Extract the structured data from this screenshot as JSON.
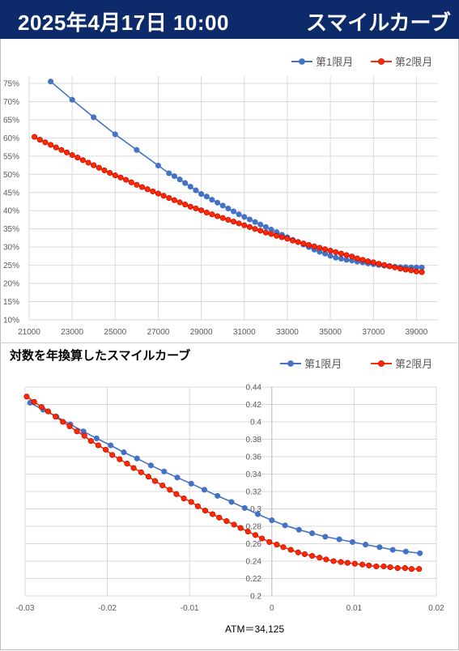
{
  "header": {
    "datetime": "2025年4月17日 10:00",
    "title": "スマイルカーブ"
  },
  "colors": {
    "series1": "#4472c4",
    "series2": "#ff2a00",
    "header_bg": "#0d2a6b"
  },
  "chart_data": [
    {
      "type": "line",
      "xlim": [
        21000,
        40000
      ],
      "ylim": [
        10,
        77
      ],
      "x_ticks": [
        21000,
        23000,
        25000,
        27000,
        29000,
        31000,
        33000,
        35000,
        37000,
        39000
      ],
      "y_ticks": [
        10,
        15,
        20,
        25,
        30,
        35,
        40,
        45,
        50,
        55,
        60,
        65,
        70,
        75
      ],
      "y_tick_suffix": "%",
      "legend_position": "top-right",
      "grid": true,
      "series": [
        {
          "name": "第1限月",
          "x": [
            22000,
            23000,
            24000,
            25000,
            26000,
            27000,
            27500,
            27750,
            28000,
            28250,
            28500,
            28750,
            29000,
            29250,
            29500,
            29750,
            30000,
            30250,
            30500,
            30750,
            31000,
            31250,
            31500,
            31750,
            32000,
            32250,
            32500,
            32750,
            33000,
            33250,
            33500,
            33750,
            34000,
            34250,
            34500,
            34750,
            35000,
            35250,
            35500,
            35750,
            36000,
            36250,
            36500,
            36750,
            37000,
            37250,
            37500,
            37750,
            38000,
            38250,
            38500,
            38750,
            39000,
            39250
          ],
          "y": [
            75.5,
            70.5,
            65.7,
            61.0,
            56.7,
            52.4,
            50.3,
            49.5,
            48.6,
            47.6,
            46.6,
            45.6,
            44.6,
            43.9,
            43.0,
            42.2,
            41.4,
            40.6,
            39.8,
            39.0,
            38.3,
            37.6,
            36.9,
            36.2,
            35.5,
            34.8,
            34.1,
            33.4,
            32.7,
            32.0,
            31.4,
            30.7,
            30.0,
            29.3,
            28.7,
            28.2,
            27.6,
            27.1,
            26.8,
            26.5,
            26.3,
            26.0,
            25.8,
            25.5,
            25.3,
            25.1,
            24.9,
            24.8,
            24.6,
            24.5,
            24.5,
            24.4,
            24.4,
            24.4
          ]
        },
        {
          "name": "第2限月",
          "x": [
            21250,
            21500,
            21750,
            22000,
            22250,
            22500,
            22750,
            23000,
            23250,
            23500,
            23750,
            24000,
            24250,
            24500,
            24750,
            25000,
            25250,
            25500,
            25750,
            26000,
            26250,
            26500,
            26750,
            27000,
            27250,
            27500,
            27750,
            28000,
            28250,
            28500,
            28750,
            29000,
            29250,
            29500,
            29750,
            30000,
            30250,
            30500,
            30750,
            31000,
            31250,
            31500,
            31750,
            32000,
            32250,
            32500,
            32750,
            33000,
            33250,
            33500,
            33750,
            34000,
            34250,
            34500,
            34750,
            35000,
            35250,
            35500,
            35750,
            36000,
            36250,
            36500,
            36750,
            37000,
            37250,
            37500,
            37750,
            38000,
            38250,
            38500,
            38750,
            39000,
            39250
          ],
          "y": [
            60.3,
            59.5,
            58.8,
            58.1,
            57.4,
            56.7,
            56.0,
            55.3,
            54.6,
            53.9,
            53.2,
            52.5,
            51.8,
            51.1,
            50.4,
            49.7,
            49.1,
            48.5,
            47.8,
            47.1,
            46.5,
            45.9,
            45.3,
            44.7,
            44.1,
            43.5,
            42.9,
            42.3,
            41.7,
            41.1,
            40.6,
            40.1,
            39.5,
            39.0,
            38.5,
            38.0,
            37.5,
            37.0,
            36.5,
            36.0,
            35.5,
            35.0,
            34.5,
            34.0,
            33.6,
            33.1,
            32.7,
            32.3,
            31.8,
            31.4,
            31.0,
            30.6,
            30.2,
            29.8,
            29.4,
            29.0,
            28.6,
            28.2,
            27.8,
            27.4,
            26.9,
            26.5,
            26.1,
            25.8,
            25.4,
            25.1,
            24.7,
            24.4,
            24.1,
            23.8,
            23.6,
            23.3,
            23.1
          ]
        }
      ]
    },
    {
      "type": "line",
      "title": "対数を年換算したスマイルカーブ",
      "xlim": [
        -0.03,
        0.02
      ],
      "ylim": [
        0.2,
        0.44
      ],
      "x_ticks": [
        -0.03,
        -0.02,
        -0.01,
        0,
        0.01,
        0.02
      ],
      "y_ticks": [
        0.2,
        0.22,
        0.24,
        0.26,
        0.28,
        0.3,
        0.32,
        0.34,
        0.36,
        0.38,
        0.4,
        0.42,
        0.44
      ],
      "legend_position": "top-right",
      "grid": true,
      "series": [
        {
          "name": "第1限月",
          "x": [
            -0.0294,
            -0.0278,
            -0.0262,
            -0.0245,
            -0.0229,
            -0.0213,
            -0.0196,
            -0.018,
            -0.0164,
            -0.0147,
            -0.0131,
            -0.0115,
            -0.0098,
            -0.0082,
            -0.0066,
            -0.0049,
            -0.0033,
            -0.0017,
            0.0,
            0.0016,
            0.0033,
            0.0049,
            0.0065,
            0.0082,
            0.0098,
            0.0114,
            0.0131,
            0.0147,
            0.0163,
            0.018
          ],
          "y": [
            0.422,
            0.414,
            0.406,
            0.397,
            0.389,
            0.381,
            0.373,
            0.365,
            0.358,
            0.35,
            0.343,
            0.336,
            0.329,
            0.322,
            0.315,
            0.308,
            0.301,
            0.294,
            0.287,
            0.281,
            0.276,
            0.272,
            0.268,
            0.265,
            0.262,
            0.259,
            0.256,
            0.253,
            0.251,
            0.249
          ]
        },
        {
          "name": "第2限月",
          "x": [
            -0.0298,
            -0.0289,
            -0.028,
            -0.0272,
            -0.0263,
            -0.0254,
            -0.0246,
            -0.0237,
            -0.0228,
            -0.022,
            -0.0211,
            -0.0202,
            -0.0194,
            -0.0185,
            -0.0176,
            -0.0168,
            -0.0159,
            -0.015,
            -0.0142,
            -0.0133,
            -0.0124,
            -0.0116,
            -0.0107,
            -0.0098,
            -0.009,
            -0.0081,
            -0.0072,
            -0.0064,
            -0.0055,
            -0.0046,
            -0.0038,
            -0.0029,
            -0.002,
            -0.0012,
            -0.0003,
            0.0006,
            0.0014,
            0.0023,
            0.0032,
            0.004,
            0.0049,
            0.0058,
            0.0066,
            0.0075,
            0.0084,
            0.0092,
            0.0101,
            0.011,
            0.0118,
            0.0127,
            0.0136,
            0.0144,
            0.0153,
            0.0162,
            0.017,
            0.0179
          ],
          "y": [
            0.429,
            0.423,
            0.417,
            0.412,
            0.406,
            0.4,
            0.395,
            0.389,
            0.384,
            0.378,
            0.373,
            0.368,
            0.362,
            0.357,
            0.352,
            0.347,
            0.342,
            0.337,
            0.332,
            0.327,
            0.322,
            0.317,
            0.312,
            0.308,
            0.303,
            0.298,
            0.294,
            0.29,
            0.286,
            0.282,
            0.278,
            0.274,
            0.27,
            0.266,
            0.262,
            0.259,
            0.256,
            0.253,
            0.25,
            0.248,
            0.246,
            0.244,
            0.242,
            0.24,
            0.239,
            0.238,
            0.237,
            0.236,
            0.235,
            0.234,
            0.234,
            0.233,
            0.232,
            0.232,
            0.231,
            0.231
          ]
        }
      ]
    }
  ],
  "atm_label": "ATM＝34,125"
}
